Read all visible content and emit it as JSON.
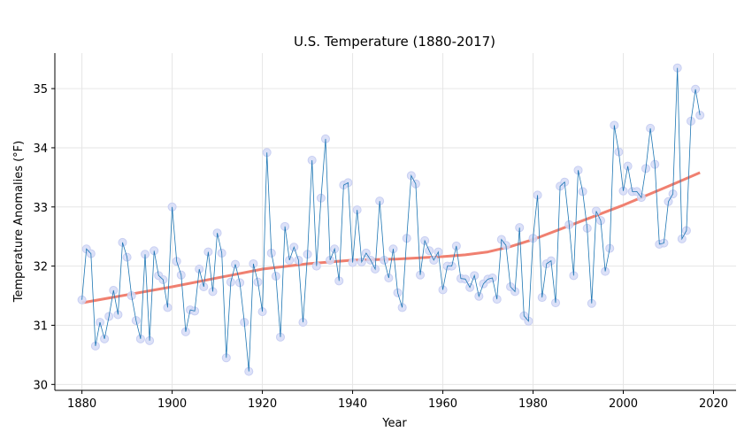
{
  "chart_data": {
    "type": "line",
    "title": "U.S. Temperature (1880-2017)",
    "xlabel": "Year",
    "ylabel": "Temperature Anomalies (°F)",
    "xlim": [
      1874,
      2025
    ],
    "ylim": [
      29.9,
      35.6
    ],
    "x_ticks": [
      1880,
      1900,
      1920,
      1940,
      1960,
      1980,
      2000,
      2020
    ],
    "y_ticks": [
      30,
      31,
      32,
      33,
      34,
      35
    ],
    "grid": true,
    "colors": {
      "line": "#1f77b4",
      "marker_fill": "#d6dcf7",
      "marker_edge": "#c8cff2",
      "trend": "#f08070",
      "grid": "#e6e6e6",
      "axis": "#000000"
    },
    "series": [
      {
        "x": [
          1880,
          1881,
          1882,
          1883,
          1884,
          1885,
          1886,
          1887,
          1888,
          1889,
          1890,
          1891,
          1892,
          1893,
          1894,
          1895,
          1896,
          1897,
          1898,
          1899,
          1900,
          1901,
          1902,
          1903,
          1904,
          1905,
          1906,
          1907,
          1908,
          1909,
          1910,
          1911,
          1912,
          1913,
          1914,
          1915,
          1916,
          1917,
          1918,
          1919,
          1920,
          1921,
          1922,
          1923,
          1924,
          1925,
          1926,
          1927,
          1928,
          1929,
          1930,
          1931,
          1932,
          1933,
          1934,
          1935,
          1936,
          1937,
          1938,
          1939,
          1940,
          1941,
          1942,
          1943,
          1944,
          1945,
          1946,
          1947,
          1948,
          1949,
          1950,
          1951,
          1952,
          1953,
          1954,
          1955,
          1956,
          1957,
          1958,
          1959,
          1960,
          1961,
          1962,
          1963,
          1964,
          1965,
          1966,
          1967,
          1968,
          1969,
          1970,
          1971,
          1972,
          1973,
          1974,
          1975,
          1976,
          1977,
          1978,
          1979,
          1980,
          1981,
          1982,
          1983,
          1984,
          1985,
          1986,
          1987,
          1988,
          1989,
          1990,
          1991,
          1992,
          1993,
          1994,
          1995,
          1996,
          1997,
          1998,
          1999,
          2000,
          2001,
          2002,
          2003,
          2004,
          2005,
          2006,
          2007,
          2008,
          2009,
          2010,
          2011,
          2012,
          2013,
          2014,
          2015,
          2016,
          2017
        ],
        "y": [
          31.43,
          32.29,
          32.21,
          30.65,
          31.05,
          30.77,
          31.15,
          31.59,
          31.18,
          32.4,
          32.15,
          31.5,
          31.08,
          30.77,
          32.2,
          30.74,
          32.26,
          31.84,
          31.77,
          31.3,
          33.0,
          32.08,
          31.85,
          30.89,
          31.26,
          31.24,
          31.95,
          31.65,
          32.24,
          31.57,
          32.56,
          32.22,
          30.45,
          31.73,
          32.03,
          31.72,
          31.05,
          30.22,
          32.04,
          31.73,
          31.23,
          33.92,
          32.22,
          31.83,
          30.8,
          32.67,
          32.1,
          32.32,
          32.1,
          31.05,
          32.2,
          33.79,
          32.0,
          33.15,
          34.15,
          32.1,
          32.29,
          31.75,
          33.37,
          33.41,
          32.06,
          32.95,
          32.07,
          32.22,
          32.1,
          31.95,
          33.1,
          32.1,
          31.8,
          32.29,
          31.55,
          31.3,
          32.47,
          33.53,
          33.39,
          31.85,
          32.43,
          32.26,
          32.1,
          32.24,
          31.6,
          32.0,
          32.0,
          32.34,
          31.79,
          31.78,
          31.64,
          31.84,
          31.49,
          31.7,
          31.78,
          31.8,
          31.44,
          32.45,
          32.35,
          31.65,
          31.57,
          32.65,
          31.16,
          31.07,
          32.47,
          33.2,
          31.47,
          32.04,
          32.09,
          31.38,
          33.35,
          33.42,
          32.7,
          31.84,
          33.62,
          33.26,
          32.64,
          31.37,
          32.93,
          32.77,
          31.91,
          32.3,
          34.38,
          33.93,
          33.27,
          33.69,
          33.26,
          33.26,
          33.16,
          33.65,
          34.33,
          33.72,
          32.37,
          32.39,
          33.09,
          33.22,
          35.35,
          32.46,
          32.6,
          34.45,
          34.99,
          34.55
        ]
      }
    ],
    "trend": {
      "x": [
        1880,
        1900,
        1920,
        1930,
        1940,
        1950,
        1960,
        1965,
        1970,
        1975,
        1980,
        1990,
        2000,
        2010,
        2017
      ],
      "y": [
        31.38,
        31.65,
        31.95,
        32.04,
        32.1,
        32.12,
        32.16,
        32.19,
        32.24,
        32.33,
        32.45,
        32.74,
        33.03,
        33.35,
        33.58
      ]
    }
  }
}
